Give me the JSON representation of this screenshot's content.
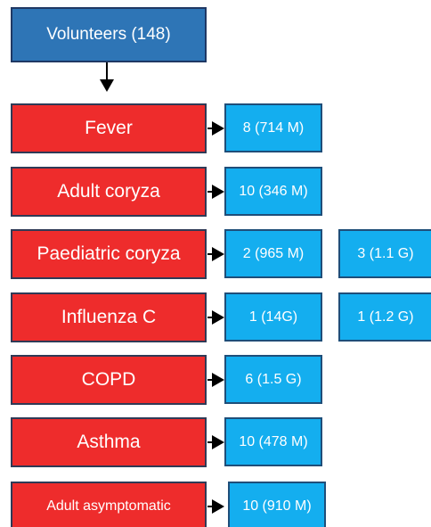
{
  "root": "Volunteers (148)",
  "rows": [
    {
      "label": "Fever",
      "results": [
        "8 (714 M)"
      ]
    },
    {
      "label": "Adult coryza",
      "results": [
        "10 (346 M)"
      ]
    },
    {
      "label": "Paediatric coryza",
      "results": [
        "2 (965 M)",
        "3 (1.1 G)"
      ]
    },
    {
      "label": "Influenza C",
      "results": [
        "1 (14G)",
        "1 (1.2 G)"
      ]
    },
    {
      "label": "COPD",
      "results": [
        "6 (1.5 G)"
      ]
    },
    {
      "label": "Asthma",
      "results": [
        "10 (478 M)"
      ]
    },
    {
      "label": "Adult asymptomatic",
      "results": [
        "10 (910 M)"
      ]
    }
  ]
}
